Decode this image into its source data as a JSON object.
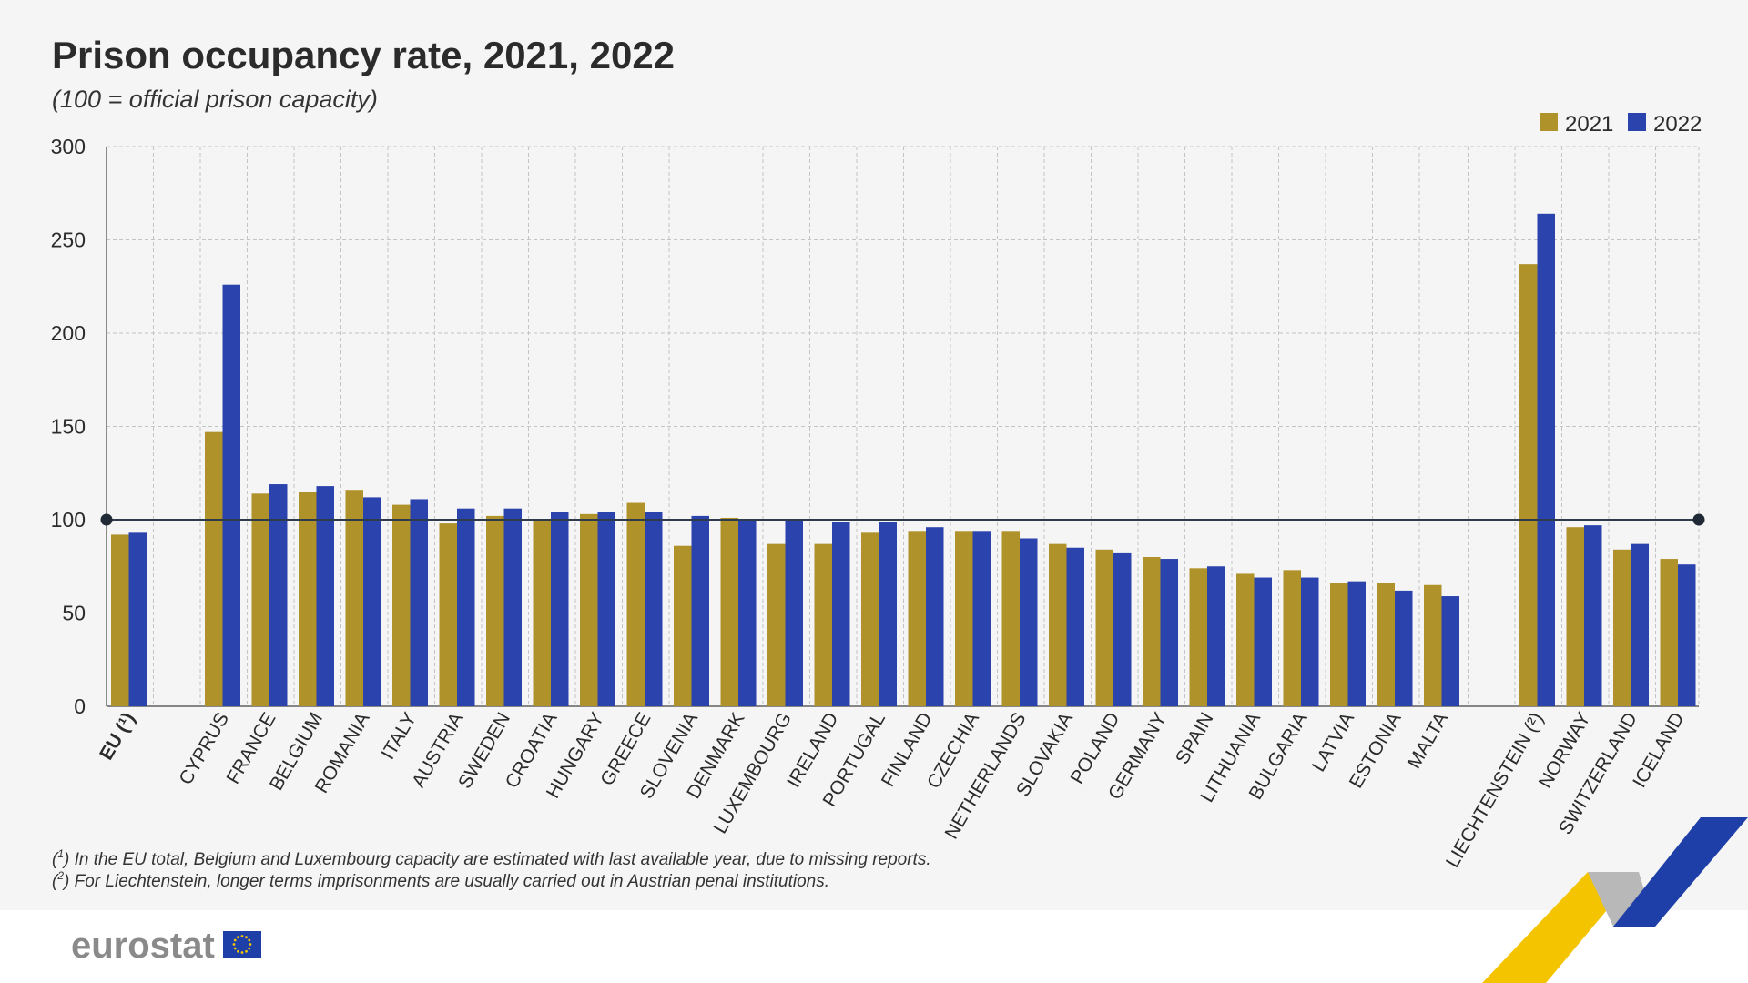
{
  "header": {
    "title": "Prison occupancy rate, 2021, 2022",
    "subtitle": "(100 = official prison capacity)"
  },
  "legend": [
    {
      "label": "2021",
      "color": "#b0922a"
    },
    {
      "label": "2022",
      "color": "#2b43ac"
    }
  ],
  "footnotes": {
    "note1_marker": "1",
    "note1_text": "In the EU total, Belgium and Luxembourg capacity are estimated with last available year, due to missing reports.",
    "note2_marker": "2",
    "note2_text": "For Liechtenstein, longer terms imprisonments are usually carried out in Austrian penal institutions."
  },
  "brand": {
    "logo_text": "eurostat",
    "flag_icon": "eu-flag-icon",
    "ribbon": "decorative-ribbon"
  },
  "chart_data": {
    "type": "bar",
    "title": "Prison occupancy rate, 2021, 2022",
    "subtitle": "(100 = official prison capacity)",
    "xlabel": "",
    "ylabel": "",
    "ylim": [
      0,
      300
    ],
    "yticks": [
      0,
      50,
      100,
      150,
      200,
      250,
      300
    ],
    "grid": true,
    "legend_position": "top-right",
    "reference_line": 100,
    "categories": [
      "EU (¹)",
      "CYPRUS",
      "FRANCE",
      "BELGIUM",
      "ROMANIA",
      "ITALY",
      "AUSTRIA",
      "SWEDEN",
      "CROATIA",
      "HUNGARY",
      "GREECE",
      "SLOVENIA",
      "DENMARK",
      "LUXEMBOURG",
      "IRELAND",
      "PORTUGAL",
      "FINLAND",
      "CZECHIA",
      "NETHERLANDS",
      "SLOVAKIA",
      "POLAND",
      "GERMANY",
      "SPAIN",
      "LITHUANIA",
      "BULGARIA",
      "LATVIA",
      "ESTONIA",
      "MALTA",
      "LIECHTENSTEIN (²)",
      "NORWAY",
      "SWITZERLAND",
      "ICELAND"
    ],
    "series": [
      {
        "name": "2021",
        "color": "#b0922a",
        "values": [
          92,
          147,
          114,
          115,
          116,
          108,
          98,
          102,
          100,
          103,
          109,
          86,
          101,
          87,
          87,
          93,
          94,
          94,
          94,
          87,
          84,
          80,
          74,
          71,
          73,
          66,
          66,
          65,
          237,
          96,
          84,
          79
        ]
      },
      {
        "name": "2022",
        "color": "#2b43ac",
        "values": [
          93,
          226,
          119,
          118,
          112,
          111,
          106,
          106,
          104,
          104,
          104,
          102,
          100,
          100,
          99,
          99,
          96,
          94,
          90,
          85,
          82,
          79,
          75,
          69,
          69,
          67,
          62,
          59,
          264,
          97,
          87,
          76
        ]
      }
    ]
  }
}
